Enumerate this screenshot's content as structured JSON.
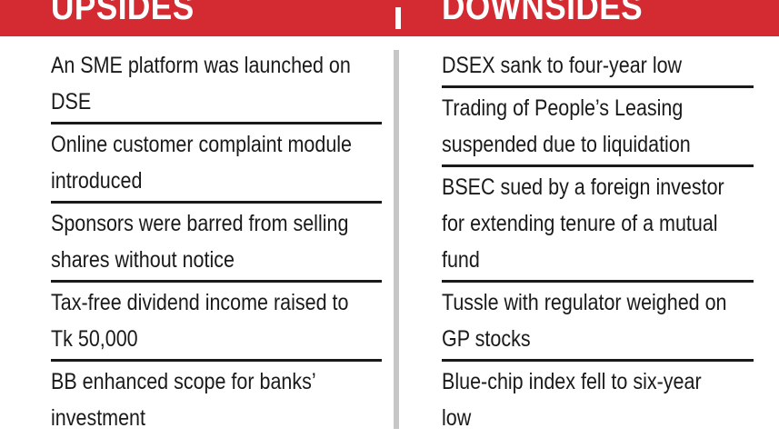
{
  "header": {
    "upsides_title": "UPSIDES",
    "downsides_title": "DOWNSIDES"
  },
  "upsides": [
    {
      "lines": [
        "An SME platform was launched on",
        "DSE"
      ]
    },
    {
      "lines": [
        "Online customer complaint module",
        "introduced"
      ]
    },
    {
      "lines": [
        "Sponsors were barred from selling",
        "shares without notice"
      ]
    },
    {
      "lines": [
        "Tax-free dividend income raised to",
        "Tk 50,000"
      ]
    },
    {
      "lines": [
        "BB enhanced scope for banks’",
        "investment"
      ]
    }
  ],
  "downsides": [
    {
      "lines": [
        "DSEX sank to four-year low"
      ]
    },
    {
      "lines": [
        "Trading of People’s Leasing",
        "suspended due to liquidation"
      ]
    },
    {
      "lines": [
        "BSEC sued by a foreign investor",
        "for extending tenure of a mutual",
        "fund"
      ]
    },
    {
      "lines": [
        "Tussle with regulator weighed on",
        "GP stocks"
      ]
    },
    {
      "lines": [
        "Blue-chip index fell to six-year",
        "low"
      ]
    }
  ],
  "colors": {
    "banner": "#d42a32",
    "text": "#1a1a1a",
    "divider": "#c6c6c6"
  }
}
